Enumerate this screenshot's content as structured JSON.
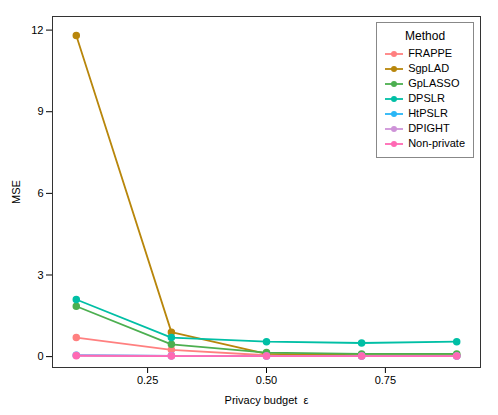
{
  "chart_data": {
    "type": "line",
    "x": [
      0.1,
      0.3,
      0.5,
      0.7,
      0.9
    ],
    "series": [
      {
        "name": "FRAPPE",
        "color": "#FF8080",
        "marker": "circle",
        "values": [
          0.7,
          0.25,
          0.05,
          0.03,
          0.03
        ]
      },
      {
        "name": "SgpLAD",
        "color": "#B8860B",
        "marker": "circle",
        "values": [
          11.8,
          0.9,
          0.1,
          0.05,
          0.05
        ]
      },
      {
        "name": "GpLASSO",
        "color": "#4CAF50",
        "marker": "circle",
        "values": [
          1.85,
          0.45,
          0.15,
          0.1,
          0.1
        ]
      },
      {
        "name": "DPSLR",
        "color": "#00BFA5",
        "marker": "circle",
        "values": [
          2.1,
          0.7,
          0.55,
          0.5,
          0.55
        ]
      },
      {
        "name": "HtPSLR",
        "color": "#29B6F6",
        "marker": "circle",
        "values": [
          0.05,
          0.03,
          0.02,
          0.02,
          0.02
        ]
      },
      {
        "name": "DPIGHT",
        "color": "#CE93D8",
        "marker": "circle",
        "values": [
          0.05,
          0.03,
          0.02,
          0.02,
          0.02
        ]
      },
      {
        "name": "Non-private",
        "color": "#FF69B4",
        "marker": "circle",
        "values": [
          0.03,
          0.02,
          0.02,
          0.02,
          0.02
        ]
      }
    ],
    "xlabel": "Privacy budget  ε",
    "ylabel": "MSE",
    "legend_title": "Method",
    "legend": "upper right",
    "xlim": [
      0.05,
      0.95
    ],
    "ylim": [
      -0.4,
      12.5
    ],
    "xticks": [
      {
        "value": 0.25,
        "label": "0.25"
      },
      {
        "value": 0.5,
        "label": "0.50"
      },
      {
        "value": 0.75,
        "label": "0.75"
      }
    ],
    "yticks": [
      0,
      3,
      6,
      9,
      12
    ],
    "grid": false
  }
}
